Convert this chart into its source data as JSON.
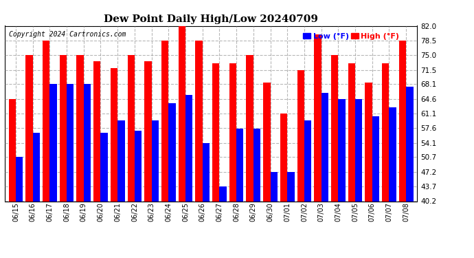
{
  "title": "Dew Point Daily High/Low 20240709",
  "copyright": "Copyright 2024 Cartronics.com",
  "legend_low": "Low (°F)",
  "legend_high": "High (°F)",
  "low_color": "#0000ff",
  "high_color": "#ff0000",
  "background_color": "#ffffff",
  "grid_color": "#999999",
  "ylim": [
    40.2,
    82.0
  ],
  "yticks": [
    40.2,
    43.7,
    47.2,
    50.7,
    54.1,
    57.6,
    61.1,
    64.6,
    68.1,
    71.5,
    75.0,
    78.5,
    82.0
  ],
  "dates": [
    "06/15",
    "06/16",
    "06/17",
    "06/18",
    "06/19",
    "06/20",
    "06/21",
    "06/22",
    "06/23",
    "06/24",
    "06/25",
    "06/26",
    "06/27",
    "06/28",
    "06/29",
    "06/30",
    "07/01",
    "07/02",
    "07/03",
    "07/04",
    "07/05",
    "07/06",
    "07/07",
    "07/08"
  ],
  "highs": [
    64.6,
    75.0,
    78.5,
    75.0,
    75.0,
    73.5,
    72.0,
    75.0,
    73.5,
    78.5,
    82.0,
    78.5,
    73.0,
    73.0,
    75.0,
    68.5,
    61.1,
    71.5,
    80.0,
    75.0,
    73.0,
    68.5,
    73.0,
    78.5
  ],
  "lows": [
    50.7,
    56.5,
    68.1,
    68.1,
    68.1,
    56.5,
    59.5,
    57.0,
    59.5,
    63.5,
    65.5,
    54.1,
    43.7,
    57.5,
    57.5,
    47.2,
    47.2,
    59.5,
    66.0,
    64.6,
    64.6,
    60.5,
    62.5,
    67.5
  ]
}
